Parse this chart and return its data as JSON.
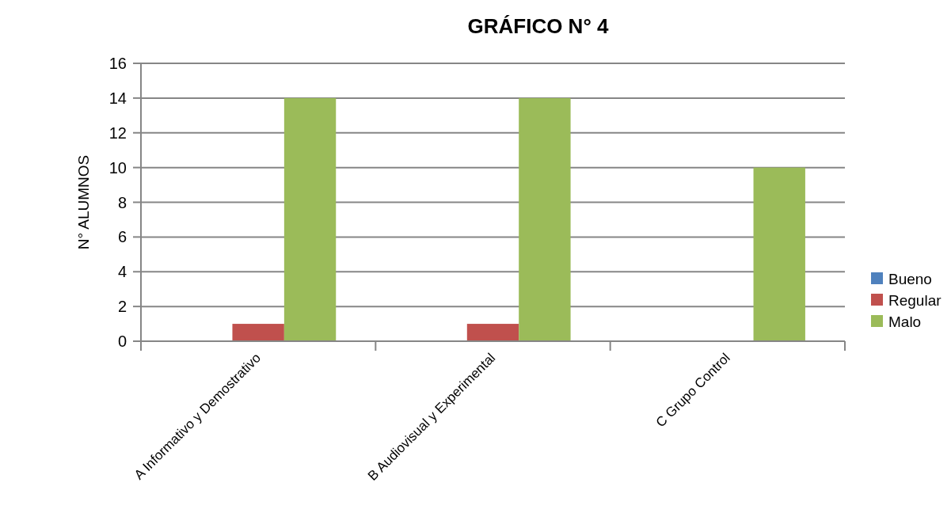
{
  "chart_data": {
    "type": "bar",
    "title": "GRÁFICO N° 4",
    "ylabel": "N° ALUMNOS",
    "categories": [
      "A Informativo y Demostrativo",
      "B Audiovisual y Experimental",
      "C Grupo Control"
    ],
    "series": [
      {
        "name": "Bueno",
        "color": "#4f81bd",
        "values": [
          0,
          0,
          0
        ]
      },
      {
        "name": "Regular",
        "color": "#c0504d",
        "values": [
          1,
          1,
          0
        ]
      },
      {
        "name": "Malo",
        "color": "#9bbb59",
        "values": [
          14,
          14,
          10
        ]
      }
    ],
    "ylim": [
      0,
      16
    ],
    "yticks": [
      0,
      2,
      4,
      6,
      8,
      10,
      12,
      14,
      16
    ],
    "grid": "y",
    "legend": "right"
  }
}
